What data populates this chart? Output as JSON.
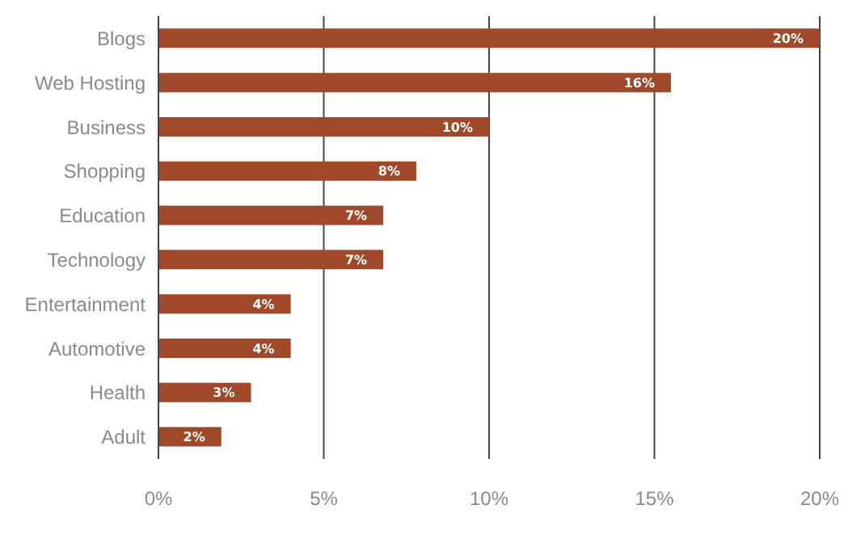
{
  "chart_data": {
    "type": "bar",
    "orientation": "horizontal",
    "categories": [
      "Blogs",
      "Web Hosting",
      "Business",
      "Shopping",
      "Education",
      "Technology",
      "Entertainment",
      "Automotive",
      "Health",
      "Adult"
    ],
    "values": [
      20,
      15.5,
      10,
      7.8,
      6.8,
      6.8,
      4,
      4,
      2.8,
      1.9
    ],
    "value_labels": [
      "20%",
      "16%",
      "10%",
      "8%",
      "7%",
      "7%",
      "4%",
      "4%",
      "3%",
      "2%"
    ],
    "color": "#a0492a",
    "xlim": [
      0,
      20
    ],
    "xticks": [
      {
        "value": 0,
        "label": "0%"
      },
      {
        "value": 5,
        "label": "5%"
      },
      {
        "value": 10,
        "label": "10%"
      },
      {
        "value": 15,
        "label": "15%"
      },
      {
        "value": 20,
        "label": "20%"
      }
    ],
    "grid": "x"
  }
}
